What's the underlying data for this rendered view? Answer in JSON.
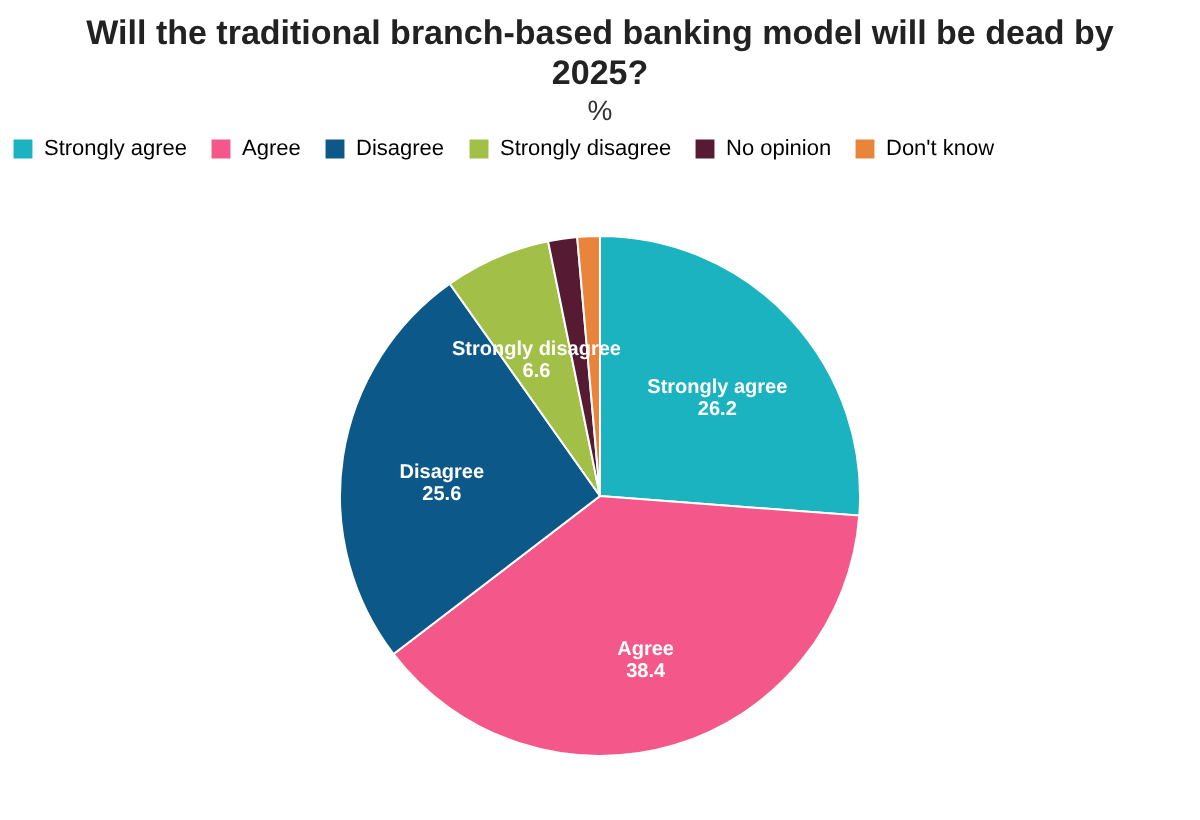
{
  "chart_data": {
    "type": "pie",
    "title": "Will the traditional branch-based banking model will be dead by 2025?",
    "subtitle": "%",
    "categories": [
      "Strongly agree",
      "Agree",
      "Disagree",
      "Strongly disagree",
      "No opinion",
      "Don't know"
    ],
    "values": [
      26.2,
      38.4,
      25.6,
      6.6,
      1.8,
      1.4
    ],
    "colors": [
      "#1ab3bf",
      "#f4588b",
      "#0c5888",
      "#a2bf48",
      "#561a33",
      "#e9843b"
    ],
    "value_labels": [
      "26.2",
      "38.4",
      "25.6",
      "6.6",
      null,
      null
    ],
    "legend": "top"
  }
}
